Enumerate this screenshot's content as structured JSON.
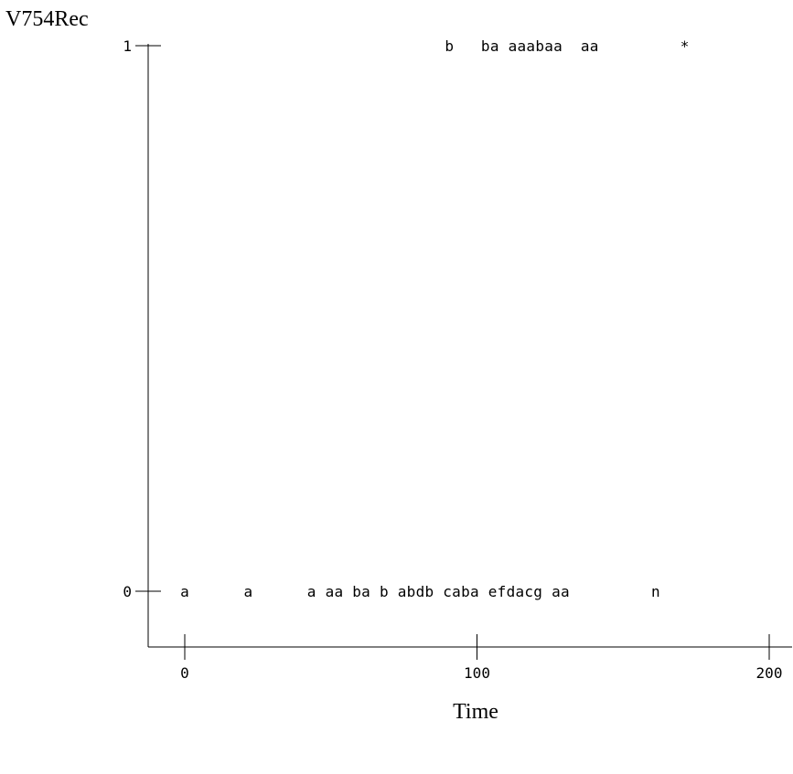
{
  "chart_data": {
    "type": "scatter",
    "ylabel": "V754Rec",
    "xlabel": "Time",
    "xlim": [
      -12,
      208
    ],
    "ylim": [
      -0.12,
      1.03
    ],
    "x_ticks": [
      0,
      100,
      200
    ],
    "x_tick_labels": [
      "0",
      "100",
      "200"
    ],
    "y_ticks": [
      0,
      1
    ],
    "y_tick_labels": [
      "0",
      "1"
    ],
    "grid": false,
    "legend": "none",
    "marker_rows": [
      {
        "y": 1,
        "start_x": 90.5,
        "text": "b   ba aaabaa  aa         *"
      },
      {
        "y": 0,
        "start_x": 0,
        "text": "a      a      a aa ba b abdb caba efdacg aa         n"
      }
    ]
  }
}
